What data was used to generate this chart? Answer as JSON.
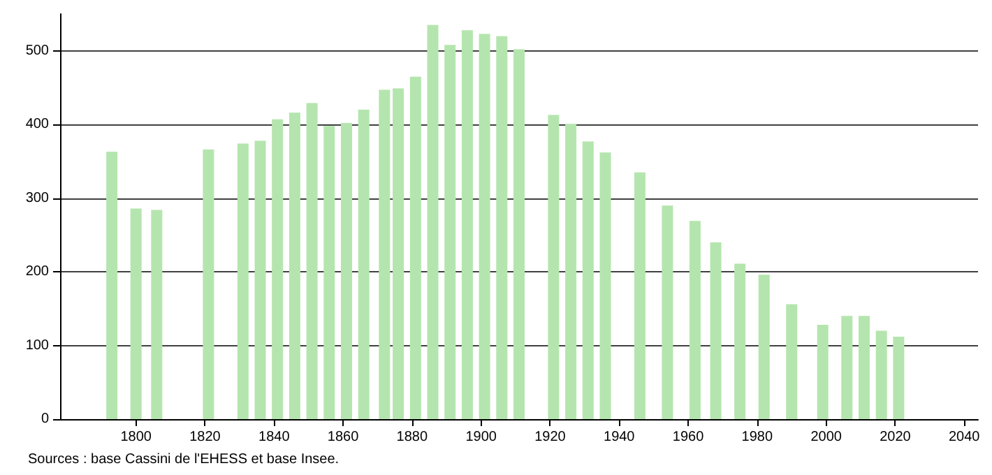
{
  "chart_data": {
    "type": "bar",
    "x": [
      1793,
      1800,
      1806,
      1821,
      1831,
      1836,
      1841,
      1846,
      1851,
      1856,
      1861,
      1866,
      1872,
      1876,
      1881,
      1886,
      1891,
      1896,
      1901,
      1906,
      1911,
      1921,
      1926,
      1931,
      1936,
      1946,
      1954,
      1962,
      1968,
      1975,
      1982,
      1990,
      1999,
      2006,
      2011,
      2016,
      2021
    ],
    "values": [
      363,
      286,
      284,
      366,
      374,
      378,
      407,
      416,
      429,
      398,
      402,
      420,
      447,
      449,
      465,
      535,
      508,
      528,
      523,
      520,
      502,
      413,
      401,
      377,
      362,
      335,
      290,
      269,
      240,
      211,
      196,
      156,
      128,
      140,
      140,
      120,
      112
    ],
    "color": "#b5e5ae",
    "xlim": [
      1778,
      2044
    ],
    "xticks": [
      1800,
      1820,
      1840,
      1860,
      1880,
      1900,
      1920,
      1940,
      1960,
      1980,
      2000,
      2020,
      2040
    ],
    "ylim": [
      0,
      550
    ],
    "yticks": [
      0,
      100,
      200,
      300,
      400,
      500
    ],
    "grid": "y",
    "annotations": [
      "Sources : base Cassini de l'EHESS et base Insee."
    ]
  }
}
